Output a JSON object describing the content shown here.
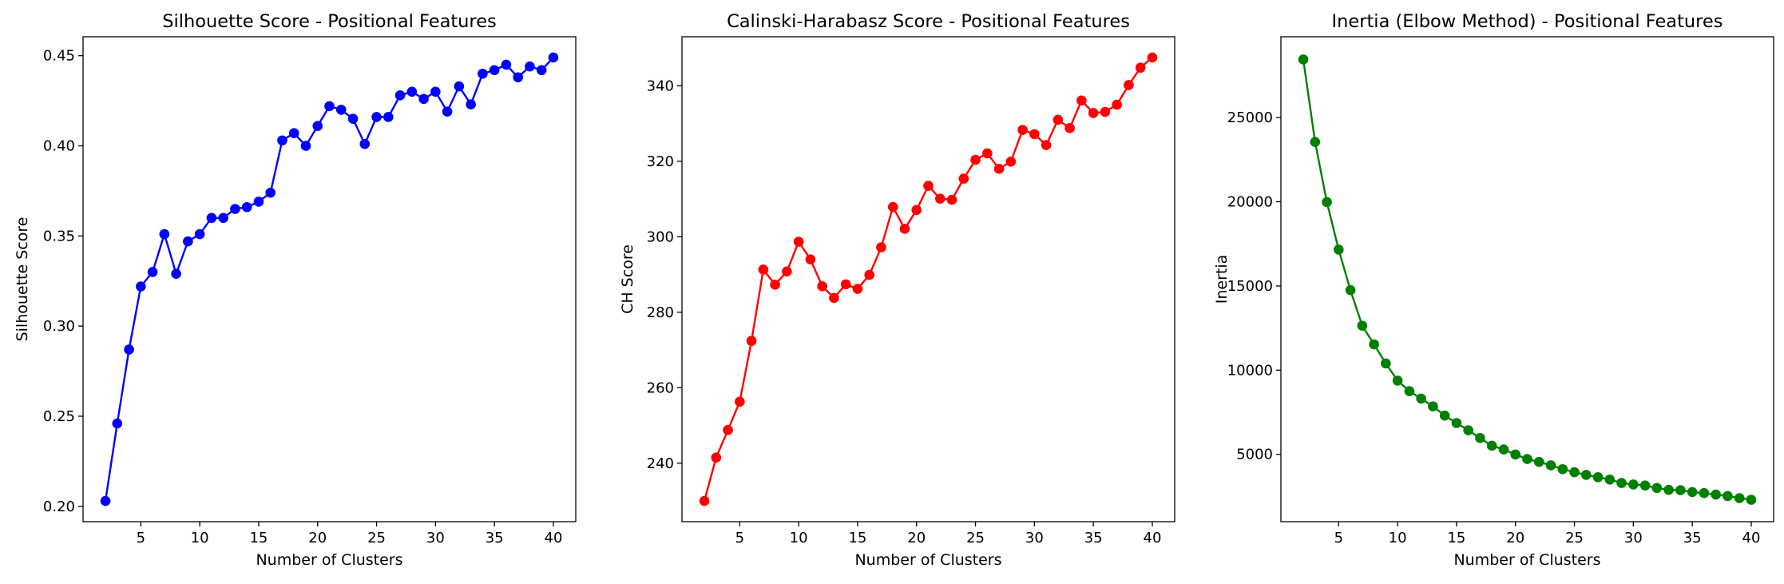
{
  "chart_data": [
    {
      "type": "line",
      "title": "Silhouette Score - Positional Features",
      "xlabel": "Number of Clusters",
      "ylabel": "Silhouette Score",
      "grid": false,
      "xlim": [
        0.1,
        41.9
      ],
      "ylim": [
        0.1915,
        0.4605
      ],
      "x_ticks": [
        5,
        10,
        15,
        20,
        25,
        30,
        35,
        40
      ],
      "y_ticks": [
        0.2,
        0.25,
        0.3,
        0.35,
        0.4,
        0.45
      ],
      "y_tick_labels": [
        "0.20",
        "0.25",
        "0.30",
        "0.35",
        "0.40",
        "0.45"
      ],
      "series": [
        {
          "color": "#0000ff",
          "marker": "circle",
          "x": [
            2,
            3,
            4,
            5,
            6,
            7,
            8,
            9,
            10,
            11,
            12,
            13,
            14,
            15,
            16,
            17,
            18,
            19,
            20,
            21,
            22,
            23,
            24,
            25,
            26,
            27,
            28,
            29,
            30,
            31,
            32,
            33,
            34,
            35,
            36,
            37,
            38,
            39,
            40
          ],
          "y": [
            0.203,
            0.246,
            0.287,
            0.322,
            0.33,
            0.351,
            0.329,
            0.347,
            0.351,
            0.36,
            0.36,
            0.365,
            0.366,
            0.369,
            0.374,
            0.403,
            0.407,
            0.4,
            0.411,
            0.422,
            0.42,
            0.415,
            0.401,
            0.416,
            0.416,
            0.428,
            0.43,
            0.426,
            0.43,
            0.419,
            0.433,
            0.423,
            0.44,
            0.442,
            0.445,
            0.438,
            0.444,
            0.442,
            0.449
          ]
        }
      ]
    },
    {
      "type": "line",
      "title": "Calinski-Harabasz Score - Positional Features",
      "xlabel": "Number of Clusters",
      "ylabel": "CH Score",
      "grid": false,
      "xlim": [
        0.1,
        41.9
      ],
      "ylim": [
        224.5,
        353.0
      ],
      "x_ticks": [
        5,
        10,
        15,
        20,
        25,
        30,
        35,
        40
      ],
      "y_ticks": [
        240,
        260,
        280,
        300,
        320,
        340
      ],
      "y_tick_labels": [
        "240",
        "260",
        "280",
        "300",
        "320",
        "340"
      ],
      "series": [
        {
          "color": "#ff0000",
          "marker": "circle",
          "x": [
            2,
            3,
            4,
            5,
            6,
            7,
            8,
            9,
            10,
            11,
            12,
            13,
            14,
            15,
            16,
            17,
            18,
            19,
            20,
            21,
            22,
            23,
            24,
            25,
            26,
            27,
            28,
            29,
            30,
            31,
            32,
            33,
            34,
            35,
            36,
            37,
            38,
            39,
            40
          ],
          "y": [
            230.0,
            241.5,
            248.8,
            256.3,
            272.4,
            291.3,
            287.3,
            290.8,
            298.7,
            294.0,
            286.9,
            283.8,
            287.4,
            286.2,
            289.9,
            297.2,
            307.9,
            302.1,
            307.1,
            313.5,
            310.1,
            309.8,
            315.4,
            320.4,
            322.1,
            318.0,
            319.9,
            328.3,
            327.2,
            324.3,
            331.0,
            328.8,
            336.1,
            332.8,
            333.1,
            335.0,
            340.2,
            344.8,
            347.5
          ]
        }
      ]
    },
    {
      "type": "line",
      "title": "Inertia (Elbow Method) - Positional Features",
      "xlabel": "Number of Clusters",
      "ylabel": "Inertia",
      "grid": false,
      "xlim": [
        0.1,
        41.9
      ],
      "ylim": [
        1000,
        29800
      ],
      "x_ticks": [
        5,
        10,
        15,
        20,
        25,
        30,
        35,
        40
      ],
      "y_ticks": [
        5000,
        10000,
        15000,
        20000,
        25000
      ],
      "y_tick_labels": [
        "5000",
        "10000",
        "15000",
        "20000",
        "25000"
      ],
      "series": [
        {
          "color": "#008000",
          "marker": "circle",
          "x": [
            2,
            3,
            4,
            5,
            6,
            7,
            8,
            9,
            10,
            11,
            12,
            13,
            14,
            15,
            16,
            17,
            18,
            19,
            20,
            21,
            22,
            23,
            24,
            25,
            26,
            27,
            28,
            29,
            30,
            31,
            32,
            33,
            34,
            35,
            36,
            37,
            38,
            39,
            40
          ],
          "y": [
            28450,
            23550,
            19980,
            17160,
            14750,
            12640,
            11530,
            10400,
            9380,
            8750,
            8310,
            7850,
            7300,
            6860,
            6430,
            5970,
            5510,
            5290,
            4990,
            4720,
            4550,
            4350,
            4120,
            3940,
            3780,
            3640,
            3500,
            3300,
            3210,
            3150,
            3000,
            2890,
            2870,
            2760,
            2700,
            2610,
            2520,
            2400,
            2300
          ]
        }
      ]
    }
  ]
}
